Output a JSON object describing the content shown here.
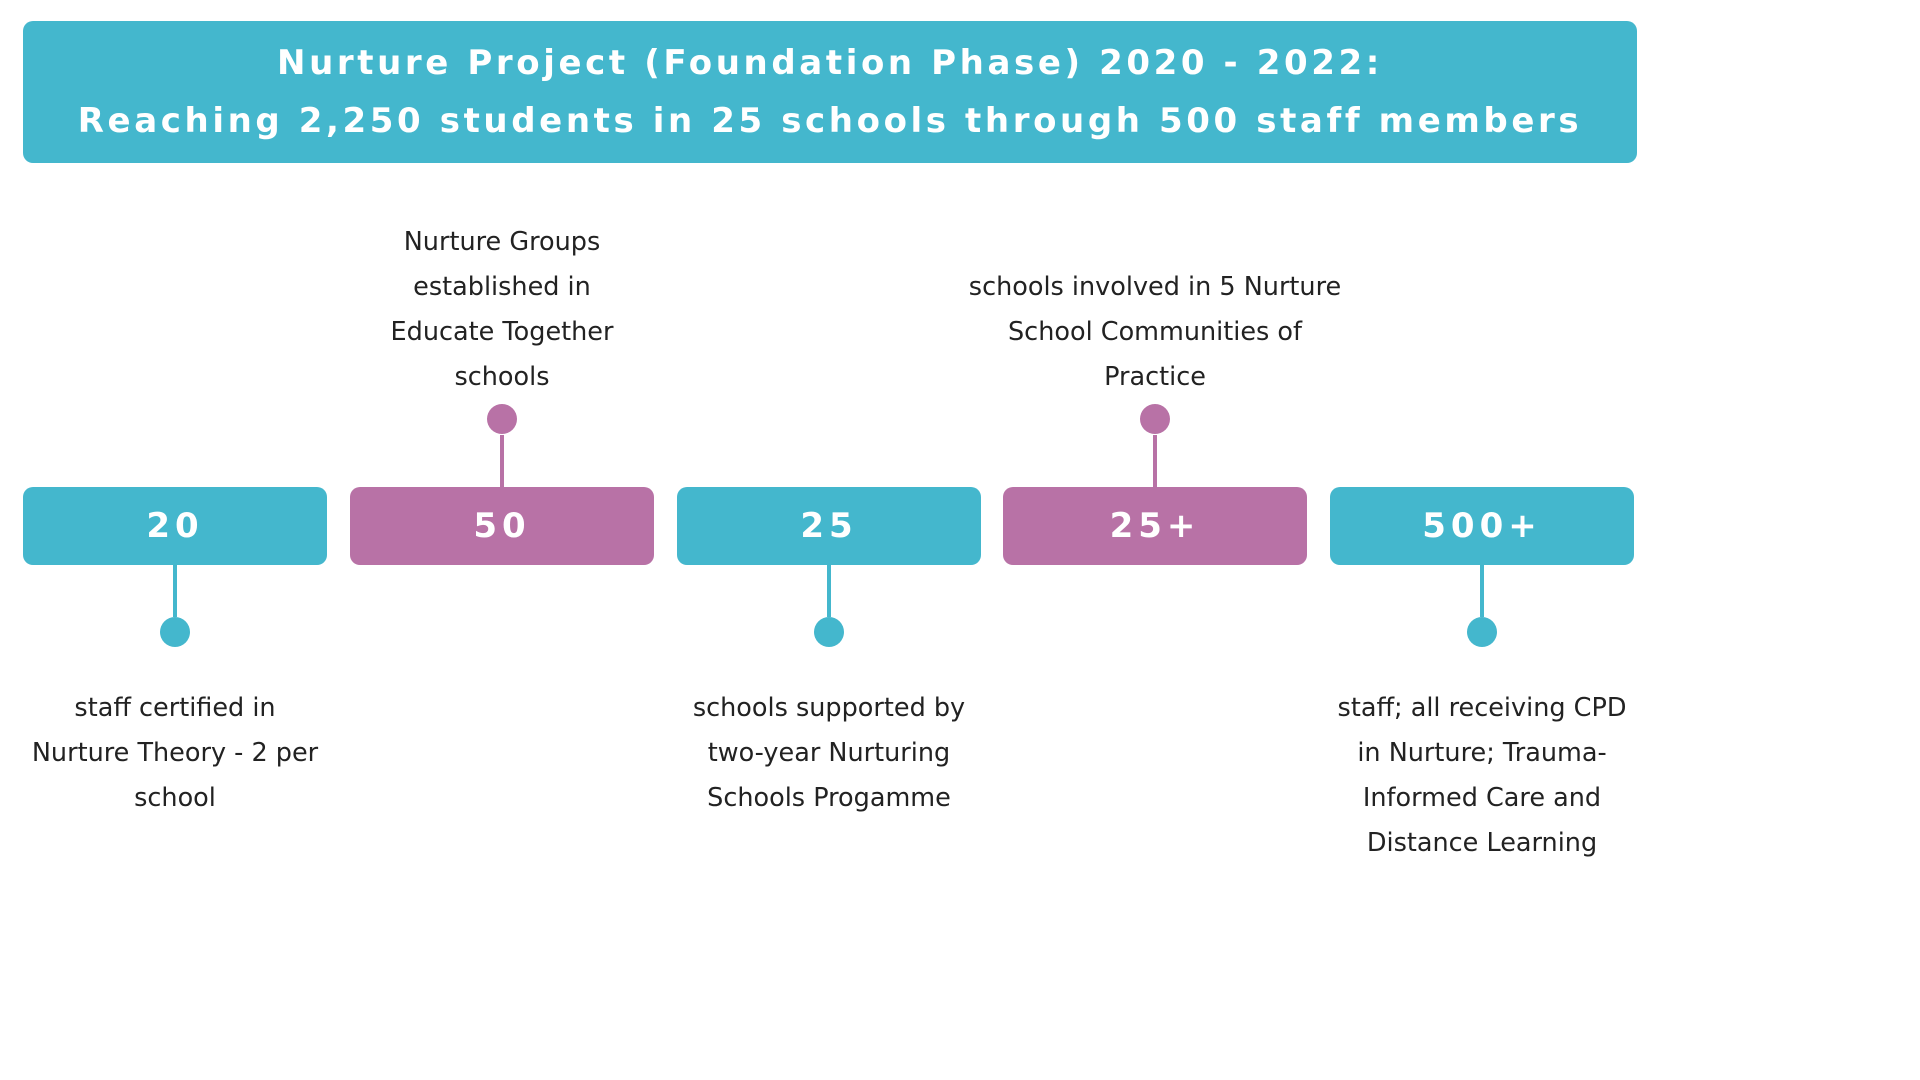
{
  "header": {
    "line1": "Nurture Project (Foundation Phase) 2020 - 2022:",
    "line2": "Reaching 2,250 students in 25 schools through 500 staff members"
  },
  "colors": {
    "teal": "#44b7cd",
    "mauve": "#b872a6",
    "text": "#222222"
  },
  "stats": [
    {
      "value": "20",
      "caption": "staff certified in\nNurture Theory - 2 per\nschool"
    },
    {
      "value": "50",
      "caption": "Nurture Groups\nestablished in\nEducate Together\nschools"
    },
    {
      "value": "25",
      "caption": "schools supported  by\ntwo-year Nurturing\nSchools Progamme"
    },
    {
      "value": "25+",
      "caption": "schools involved in 5 Nurture\nSchool Communities of\nPractice"
    },
    {
      "value": "500+",
      "caption": "staff; all receiving CPD\nin Nurture; Trauma-\nInformed Care and\nDistance Learning"
    }
  ]
}
